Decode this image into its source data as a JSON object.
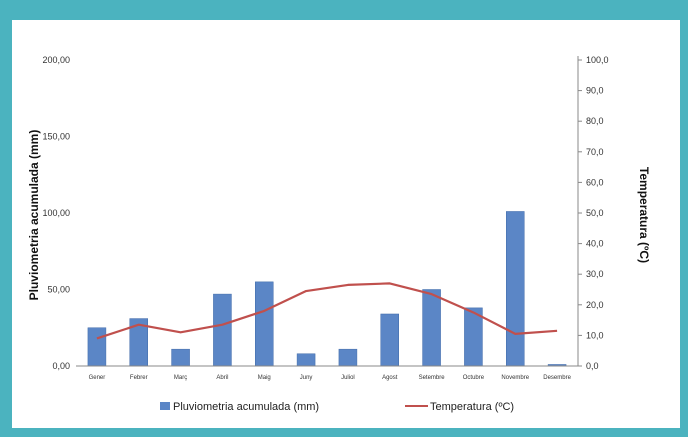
{
  "chart_data": {
    "type": "bar",
    "categories": [
      "Gener",
      "Febrer",
      "Març",
      "Abril",
      "Maig",
      "Juny",
      "Juliol",
      "Agost",
      "Setembre",
      "Octubre",
      "Novembre",
      "Desembre"
    ],
    "series": [
      {
        "name": "Pluviometria acumulada (mm)",
        "type": "bar",
        "axis": "left",
        "color": "#5b86c6",
        "values": [
          25,
          31,
          11,
          47,
          55,
          8,
          11,
          34,
          50,
          38,
          101,
          1
        ]
      },
      {
        "name": "Temperatura (ºC)",
        "type": "line",
        "axis": "right",
        "color": "#c0504d",
        "values": [
          9.0,
          13.5,
          11.0,
          13.5,
          18.0,
          24.5,
          26.5,
          27.0,
          23.5,
          17.5,
          10.5,
          11.5
        ]
      }
    ],
    "y_left": {
      "label": "Pluviometria acumulada (mm)",
      "min": 0,
      "max": 200,
      "step": 50,
      "ticks": [
        "0,00",
        "50,00",
        "100,00",
        "150,00",
        "200,00"
      ]
    },
    "y_right": {
      "label": "Temperatura (ºC)",
      "min": 0,
      "max": 100,
      "step": 10,
      "ticks": [
        "0,0",
        "10,0",
        "20,0",
        "30,0",
        "40,0",
        "50,0",
        "60,0",
        "70,0",
        "80,0",
        "90,0",
        "100,0"
      ]
    },
    "grid": false,
    "legend": "bottom"
  }
}
